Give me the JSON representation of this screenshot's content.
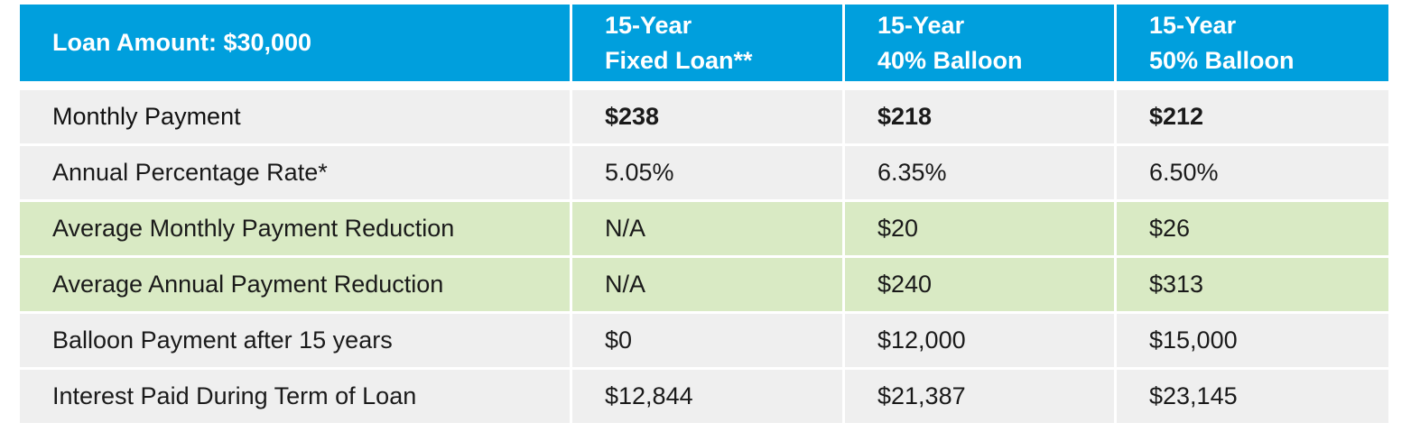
{
  "header": {
    "label": "Loan Amount: $30,000",
    "columns": [
      {
        "line1": "15-Year",
        "line2": "Fixed Loan**"
      },
      {
        "line1": "15-Year",
        "line2": "40% Balloon"
      },
      {
        "line1": "15-Year",
        "line2": "50% Balloon"
      }
    ]
  },
  "rows": [
    {
      "label": "Monthly Payment",
      "values": [
        "$238",
        "$218",
        "$212"
      ]
    },
    {
      "label": "Annual Percentage Rate*",
      "values": [
        "5.05%",
        "6.35%",
        "6.50%"
      ]
    },
    {
      "label": "Average Monthly Payment Reduction",
      "values": [
        "N/A",
        "$20",
        "$26"
      ]
    },
    {
      "label": "Average Annual Payment Reduction",
      "values": [
        "N/A",
        "$240",
        "$313"
      ]
    },
    {
      "label": "Balloon Payment after 15 years",
      "values": [
        "$0",
        "$12,000",
        "$15,000"
      ]
    },
    {
      "label": "Interest Paid During Term of Loan",
      "values": [
        "$12,844",
        "$21,387",
        "$23,145"
      ]
    }
  ],
  "colors": {
    "header_bg": "#009fdd",
    "row_gray": "#efefef",
    "row_green": "#d9eac4"
  }
}
